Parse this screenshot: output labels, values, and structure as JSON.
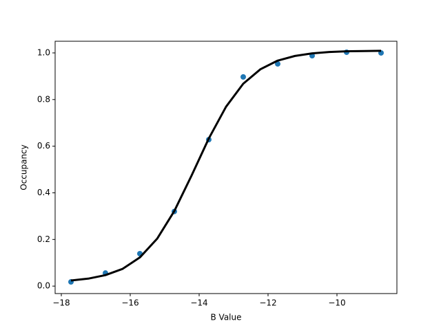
{
  "chart_data": {
    "type": "scatter",
    "x_label": "B Value",
    "y_label": "Occupancy",
    "xlim": [
      -18.18,
      -8.26
    ],
    "ylim": [
      -0.032,
      1.05
    ],
    "xticks": [
      {
        "value": -18,
        "label": "−18"
      },
      {
        "value": -16,
        "label": "−16"
      },
      {
        "value": -14,
        "label": "−14"
      },
      {
        "value": -12,
        "label": "−12"
      },
      {
        "value": -10,
        "label": "−10"
      }
    ],
    "yticks": [
      {
        "value": 0,
        "label": "0.0"
      },
      0.2,
      0.4,
      0.6,
      0.8,
      {
        "value": 1,
        "label": "1.0"
      }
    ],
    "grid": false,
    "series": [
      {
        "type": "scatter",
        "color": "#1f77b4",
        "x": [
          -17.72,
          -16.72,
          -15.72,
          -14.72,
          -13.72,
          -12.72,
          -11.72,
          -10.72,
          -9.72,
          -8.72
        ],
        "values": [
          0.018,
          0.056,
          0.139,
          0.32,
          0.628,
          0.897,
          0.953,
          0.988,
          1.003,
          1.0
        ]
      },
      {
        "type": "line",
        "color": "#000000",
        "x": [
          -17.72,
          -17.22,
          -16.72,
          -16.22,
          -15.72,
          -15.22,
          -14.72,
          -14.22,
          -13.72,
          -13.22,
          -12.72,
          -12.22,
          -11.72,
          -11.22,
          -10.72,
          -10.22,
          -9.72,
          -9.22,
          -8.72
        ],
        "values": [
          0.024,
          0.032,
          0.047,
          0.074,
          0.123,
          0.203,
          0.322,
          0.474,
          0.633,
          0.769,
          0.868,
          0.93,
          0.967,
          0.987,
          0.998,
          1.004,
          1.007,
          1.008,
          1.009
        ]
      }
    ]
  }
}
